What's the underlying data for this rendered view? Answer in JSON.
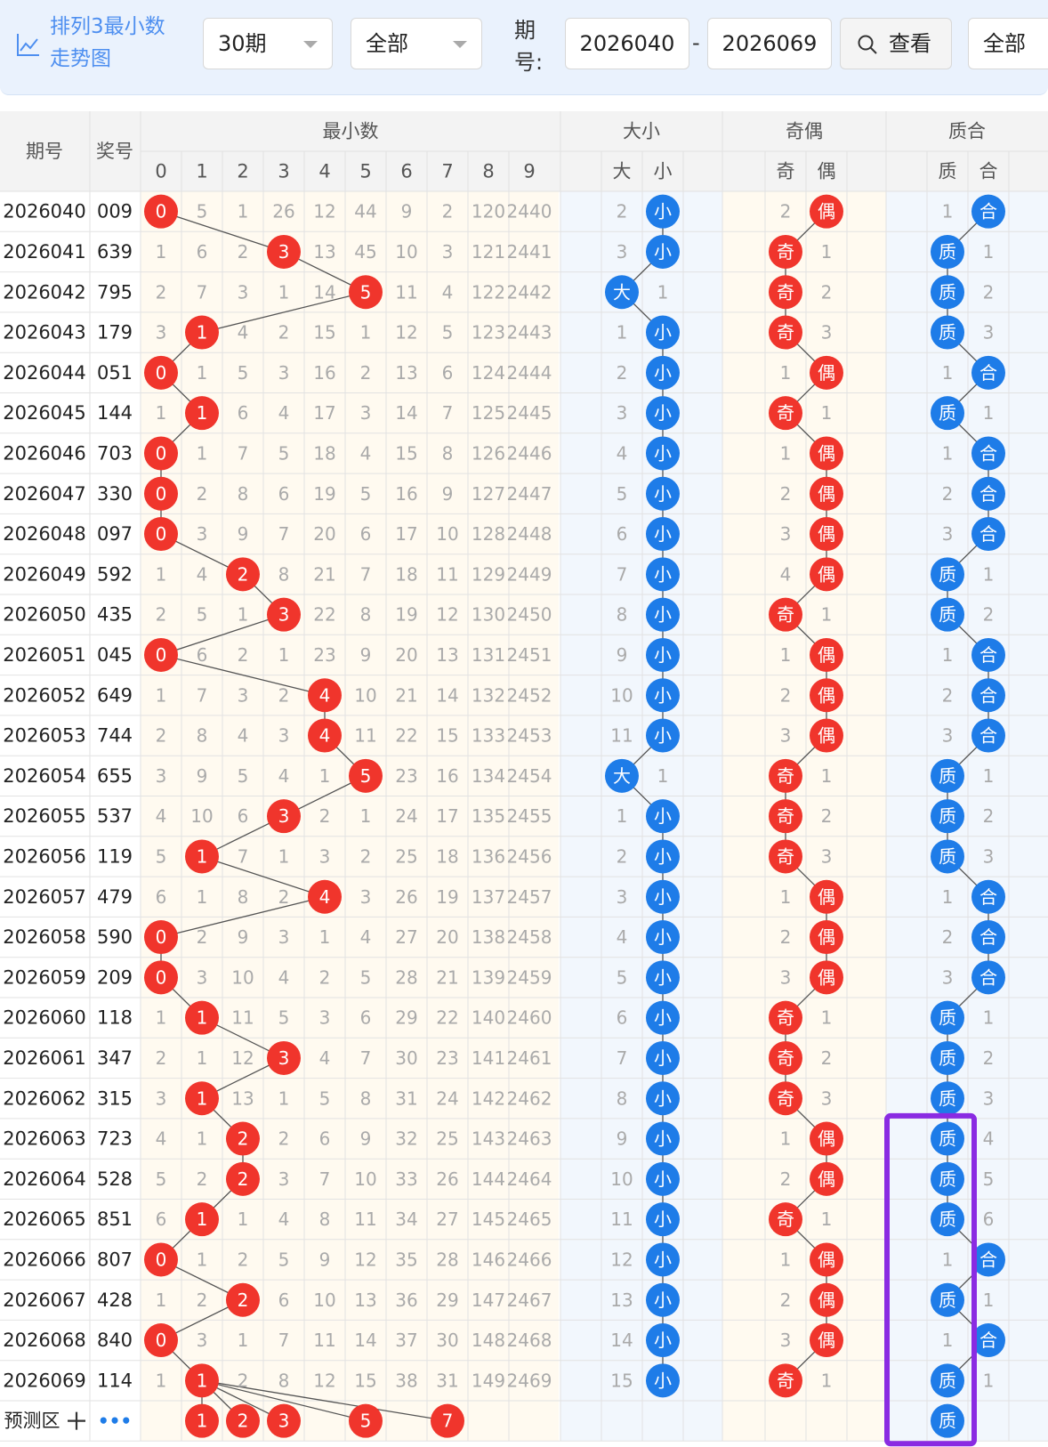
{
  "toolbar": {
    "title_line1": "排列3最小数",
    "title_line2": "走势图",
    "period_select": "30期",
    "type_select": "全部",
    "issue_label_1": "期",
    "issue_label_2": "号:",
    "issue_from": "2026040",
    "separator": "-",
    "issue_to": "2026069",
    "view_button": "查看",
    "scope_select": "全部"
  },
  "headers": {
    "issue": "期号",
    "prize": "奖号",
    "min_group": "最小数",
    "min_digits": [
      "0",
      "1",
      "2",
      "3",
      "4",
      "5",
      "6",
      "7",
      "8",
      "9"
    ],
    "size_group": "大小",
    "size_cols": [
      "大",
      "小"
    ],
    "odd_group": "奇偶",
    "odd_cols": [
      "奇",
      "偶"
    ],
    "prime_group": "质合",
    "prime_cols": [
      "质",
      "合"
    ]
  },
  "rows": [
    {
      "issue": "2026040",
      "prize": "009",
      "min": [
        "0",
        "5",
        "1",
        "26",
        "12",
        "44",
        "9",
        "2",
        "120",
        "2440"
      ],
      "hit": 0,
      "size": [
        "2",
        "小"
      ],
      "size_hit": 1,
      "odd": [
        "2",
        "偶"
      ],
      "odd_hit": 1,
      "prime": [
        "1",
        "合"
      ],
      "prime_hit": 1
    },
    {
      "issue": "2026041",
      "prize": "639",
      "min": [
        "1",
        "6",
        "2",
        "3",
        "13",
        "45",
        "10",
        "3",
        "121",
        "2441"
      ],
      "hit": 3,
      "size": [
        "3",
        "小"
      ],
      "size_hit": 1,
      "odd": [
        "奇",
        "1"
      ],
      "odd_hit": 0,
      "prime": [
        "质",
        "1"
      ],
      "prime_hit": 0
    },
    {
      "issue": "2026042",
      "prize": "795",
      "min": [
        "2",
        "7",
        "3",
        "1",
        "14",
        "5",
        "11",
        "4",
        "122",
        "2442"
      ],
      "hit": 5,
      "size": [
        "大",
        "1"
      ],
      "size_hit": 0,
      "odd": [
        "奇",
        "2"
      ],
      "odd_hit": 0,
      "prime": [
        "质",
        "2"
      ],
      "prime_hit": 0
    },
    {
      "issue": "2026043",
      "prize": "179",
      "min": [
        "3",
        "1",
        "4",
        "2",
        "15",
        "1",
        "12",
        "5",
        "123",
        "2443"
      ],
      "hit": 1,
      "size": [
        "1",
        "小"
      ],
      "size_hit": 1,
      "odd": [
        "奇",
        "3"
      ],
      "odd_hit": 0,
      "prime": [
        "质",
        "3"
      ],
      "prime_hit": 0
    },
    {
      "issue": "2026044",
      "prize": "051",
      "min": [
        "0",
        "1",
        "5",
        "3",
        "16",
        "2",
        "13",
        "6",
        "124",
        "2444"
      ],
      "hit": 0,
      "size": [
        "2",
        "小"
      ],
      "size_hit": 1,
      "odd": [
        "1",
        "偶"
      ],
      "odd_hit": 1,
      "prime": [
        "1",
        "合"
      ],
      "prime_hit": 1
    },
    {
      "issue": "2026045",
      "prize": "144",
      "min": [
        "1",
        "1",
        "6",
        "4",
        "17",
        "3",
        "14",
        "7",
        "125",
        "2445"
      ],
      "hit": 1,
      "size": [
        "3",
        "小"
      ],
      "size_hit": 1,
      "odd": [
        "奇",
        "1"
      ],
      "odd_hit": 0,
      "prime": [
        "质",
        "1"
      ],
      "prime_hit": 0
    },
    {
      "issue": "2026046",
      "prize": "703",
      "min": [
        "0",
        "1",
        "7",
        "5",
        "18",
        "4",
        "15",
        "8",
        "126",
        "2446"
      ],
      "hit": 0,
      "size": [
        "4",
        "小"
      ],
      "size_hit": 1,
      "odd": [
        "1",
        "偶"
      ],
      "odd_hit": 1,
      "prime": [
        "1",
        "合"
      ],
      "prime_hit": 1
    },
    {
      "issue": "2026047",
      "prize": "330",
      "min": [
        "0",
        "2",
        "8",
        "6",
        "19",
        "5",
        "16",
        "9",
        "127",
        "2447"
      ],
      "hit": 0,
      "size": [
        "5",
        "小"
      ],
      "size_hit": 1,
      "odd": [
        "2",
        "偶"
      ],
      "odd_hit": 1,
      "prime": [
        "2",
        "合"
      ],
      "prime_hit": 1
    },
    {
      "issue": "2026048",
      "prize": "097",
      "min": [
        "0",
        "3",
        "9",
        "7",
        "20",
        "6",
        "17",
        "10",
        "128",
        "2448"
      ],
      "hit": 0,
      "size": [
        "6",
        "小"
      ],
      "size_hit": 1,
      "odd": [
        "3",
        "偶"
      ],
      "odd_hit": 1,
      "prime": [
        "3",
        "合"
      ],
      "prime_hit": 1
    },
    {
      "issue": "2026049",
      "prize": "592",
      "min": [
        "1",
        "4",
        "2",
        "8",
        "21",
        "7",
        "18",
        "11",
        "129",
        "2449"
      ],
      "hit": 2,
      "size": [
        "7",
        "小"
      ],
      "size_hit": 1,
      "odd": [
        "4",
        "偶"
      ],
      "odd_hit": 1,
      "prime": [
        "质",
        "1"
      ],
      "prime_hit": 0
    },
    {
      "issue": "2026050",
      "prize": "435",
      "min": [
        "2",
        "5",
        "1",
        "3",
        "22",
        "8",
        "19",
        "12",
        "130",
        "2450"
      ],
      "hit": 3,
      "size": [
        "8",
        "小"
      ],
      "size_hit": 1,
      "odd": [
        "奇",
        "1"
      ],
      "odd_hit": 0,
      "prime": [
        "质",
        "2"
      ],
      "prime_hit": 0
    },
    {
      "issue": "2026051",
      "prize": "045",
      "min": [
        "0",
        "6",
        "2",
        "1",
        "23",
        "9",
        "20",
        "13",
        "131",
        "2451"
      ],
      "hit": 0,
      "size": [
        "9",
        "小"
      ],
      "size_hit": 1,
      "odd": [
        "1",
        "偶"
      ],
      "odd_hit": 1,
      "prime": [
        "1",
        "合"
      ],
      "prime_hit": 1
    },
    {
      "issue": "2026052",
      "prize": "649",
      "min": [
        "1",
        "7",
        "3",
        "2",
        "4",
        "10",
        "21",
        "14",
        "132",
        "2452"
      ],
      "hit": 4,
      "size": [
        "10",
        "小"
      ],
      "size_hit": 1,
      "odd": [
        "2",
        "偶"
      ],
      "odd_hit": 1,
      "prime": [
        "2",
        "合"
      ],
      "prime_hit": 1
    },
    {
      "issue": "2026053",
      "prize": "744",
      "min": [
        "2",
        "8",
        "4",
        "3",
        "4",
        "11",
        "22",
        "15",
        "133",
        "2453"
      ],
      "hit": 4,
      "size": [
        "11",
        "小"
      ],
      "size_hit": 1,
      "odd": [
        "3",
        "偶"
      ],
      "odd_hit": 1,
      "prime": [
        "3",
        "合"
      ],
      "prime_hit": 1
    },
    {
      "issue": "2026054",
      "prize": "655",
      "min": [
        "3",
        "9",
        "5",
        "4",
        "1",
        "5",
        "23",
        "16",
        "134",
        "2454"
      ],
      "hit": 5,
      "size": [
        "大",
        "1"
      ],
      "size_hit": 0,
      "odd": [
        "奇",
        "1"
      ],
      "odd_hit": 0,
      "prime": [
        "质",
        "1"
      ],
      "prime_hit": 0
    },
    {
      "issue": "2026055",
      "prize": "537",
      "min": [
        "4",
        "10",
        "6",
        "3",
        "2",
        "1",
        "24",
        "17",
        "135",
        "2455"
      ],
      "hit": 3,
      "size": [
        "1",
        "小"
      ],
      "size_hit": 1,
      "odd": [
        "奇",
        "2"
      ],
      "odd_hit": 0,
      "prime": [
        "质",
        "2"
      ],
      "prime_hit": 0
    },
    {
      "issue": "2026056",
      "prize": "119",
      "min": [
        "5",
        "1",
        "7",
        "1",
        "3",
        "2",
        "25",
        "18",
        "136",
        "2456"
      ],
      "hit": 1,
      "size": [
        "2",
        "小"
      ],
      "size_hit": 1,
      "odd": [
        "奇",
        "3"
      ],
      "odd_hit": 0,
      "prime": [
        "质",
        "3"
      ],
      "prime_hit": 0
    },
    {
      "issue": "2026057",
      "prize": "479",
      "min": [
        "6",
        "1",
        "8",
        "2",
        "4",
        "3",
        "26",
        "19",
        "137",
        "2457"
      ],
      "hit": 4,
      "size": [
        "3",
        "小"
      ],
      "size_hit": 1,
      "odd": [
        "1",
        "偶"
      ],
      "odd_hit": 1,
      "prime": [
        "1",
        "合"
      ],
      "prime_hit": 1
    },
    {
      "issue": "2026058",
      "prize": "590",
      "min": [
        "0",
        "2",
        "9",
        "3",
        "1",
        "4",
        "27",
        "20",
        "138",
        "2458"
      ],
      "hit": 0,
      "size": [
        "4",
        "小"
      ],
      "size_hit": 1,
      "odd": [
        "2",
        "偶"
      ],
      "odd_hit": 1,
      "prime": [
        "2",
        "合"
      ],
      "prime_hit": 1
    },
    {
      "issue": "2026059",
      "prize": "209",
      "min": [
        "0",
        "3",
        "10",
        "4",
        "2",
        "5",
        "28",
        "21",
        "139",
        "2459"
      ],
      "hit": 0,
      "size": [
        "5",
        "小"
      ],
      "size_hit": 1,
      "odd": [
        "3",
        "偶"
      ],
      "odd_hit": 1,
      "prime": [
        "3",
        "合"
      ],
      "prime_hit": 1
    },
    {
      "issue": "2026060",
      "prize": "118",
      "min": [
        "1",
        "1",
        "11",
        "5",
        "3",
        "6",
        "29",
        "22",
        "140",
        "2460"
      ],
      "hit": 1,
      "size": [
        "6",
        "小"
      ],
      "size_hit": 1,
      "odd": [
        "奇",
        "1"
      ],
      "odd_hit": 0,
      "prime": [
        "质",
        "1"
      ],
      "prime_hit": 0
    },
    {
      "issue": "2026061",
      "prize": "347",
      "min": [
        "2",
        "1",
        "12",
        "3",
        "4",
        "7",
        "30",
        "23",
        "141",
        "2461"
      ],
      "hit": 3,
      "size": [
        "7",
        "小"
      ],
      "size_hit": 1,
      "odd": [
        "奇",
        "2"
      ],
      "odd_hit": 0,
      "prime": [
        "质",
        "2"
      ],
      "prime_hit": 0
    },
    {
      "issue": "2026062",
      "prize": "315",
      "min": [
        "3",
        "1",
        "13",
        "1",
        "5",
        "8",
        "31",
        "24",
        "142",
        "2462"
      ],
      "hit": 1,
      "size": [
        "8",
        "小"
      ],
      "size_hit": 1,
      "odd": [
        "奇",
        "3"
      ],
      "odd_hit": 0,
      "prime": [
        "质",
        "3"
      ],
      "prime_hit": 0
    },
    {
      "issue": "2026063",
      "prize": "723",
      "min": [
        "4",
        "1",
        "2",
        "2",
        "6",
        "9",
        "32",
        "25",
        "143",
        "2463"
      ],
      "hit": 2,
      "size": [
        "9",
        "小"
      ],
      "size_hit": 1,
      "odd": [
        "1",
        "偶"
      ],
      "odd_hit": 1,
      "prime": [
        "质",
        "4"
      ],
      "prime_hit": 0
    },
    {
      "issue": "2026064",
      "prize": "528",
      "min": [
        "5",
        "2",
        "2",
        "3",
        "7",
        "10",
        "33",
        "26",
        "144",
        "2464"
      ],
      "hit": 2,
      "size": [
        "10",
        "小"
      ],
      "size_hit": 1,
      "odd": [
        "2",
        "偶"
      ],
      "odd_hit": 1,
      "prime": [
        "质",
        "5"
      ],
      "prime_hit": 0
    },
    {
      "issue": "2026065",
      "prize": "851",
      "min": [
        "6",
        "1",
        "1",
        "4",
        "8",
        "11",
        "34",
        "27",
        "145",
        "2465"
      ],
      "hit": 1,
      "size": [
        "11",
        "小"
      ],
      "size_hit": 1,
      "odd": [
        "奇",
        "1"
      ],
      "odd_hit": 0,
      "prime": [
        "质",
        "6"
      ],
      "prime_hit": 0
    },
    {
      "issue": "2026066",
      "prize": "807",
      "min": [
        "0",
        "1",
        "2",
        "5",
        "9",
        "12",
        "35",
        "28",
        "146",
        "2466"
      ],
      "hit": 0,
      "size": [
        "12",
        "小"
      ],
      "size_hit": 1,
      "odd": [
        "1",
        "偶"
      ],
      "odd_hit": 1,
      "prime": [
        "1",
        "合"
      ],
      "prime_hit": 1
    },
    {
      "issue": "2026067",
      "prize": "428",
      "min": [
        "1",
        "2",
        "2",
        "6",
        "10",
        "13",
        "36",
        "29",
        "147",
        "2467"
      ],
      "hit": 2,
      "size": [
        "13",
        "小"
      ],
      "size_hit": 1,
      "odd": [
        "2",
        "偶"
      ],
      "odd_hit": 1,
      "prime": [
        "质",
        "1"
      ],
      "prime_hit": 0
    },
    {
      "issue": "2026068",
      "prize": "840",
      "min": [
        "0",
        "3",
        "1",
        "7",
        "11",
        "14",
        "37",
        "30",
        "148",
        "2468"
      ],
      "hit": 0,
      "size": [
        "14",
        "小"
      ],
      "size_hit": 1,
      "odd": [
        "3",
        "偶"
      ],
      "odd_hit": 1,
      "prime": [
        "1",
        "合"
      ],
      "prime_hit": 1
    },
    {
      "issue": "2026069",
      "prize": "114",
      "min": [
        "1",
        "1",
        "2",
        "8",
        "12",
        "15",
        "38",
        "31",
        "149",
        "2469"
      ],
      "hit": 1,
      "size": [
        "15",
        "小"
      ],
      "size_hit": 1,
      "odd": [
        "奇",
        "1"
      ],
      "odd_hit": 0,
      "prime": [
        "质",
        "1"
      ],
      "prime_hit": 0
    }
  ],
  "prediction": {
    "label": "预测区",
    "plus_icon": "plus-icon",
    "more_icon": "more-dots-icon",
    "more_text": "•••",
    "min_picks": [
      "1",
      "2",
      "3",
      "5",
      "7"
    ],
    "prime_pick": "质"
  },
  "colors": {
    "red": "#f0352c",
    "blue": "#1e7ce8",
    "highlight": "#8a2be2",
    "line": "#555555"
  }
}
